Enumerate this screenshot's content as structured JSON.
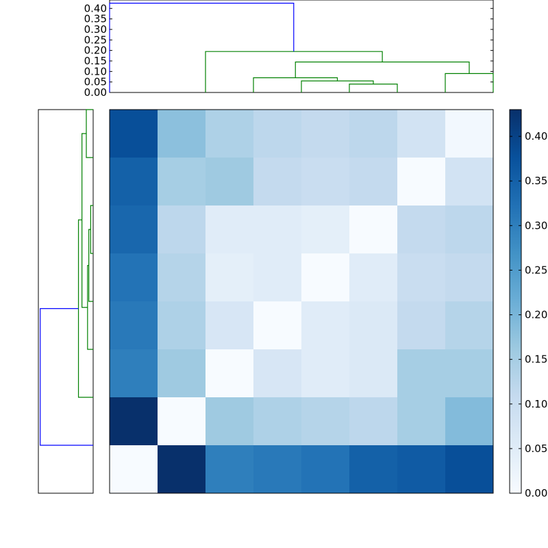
{
  "chart_data": [
    {
      "type": "heatmap",
      "title": "",
      "matrix": [
        [
          0.38,
          0.18,
          0.14,
          0.12,
          0.11,
          0.12,
          0.08,
          0.01
        ],
        [
          0.35,
          0.15,
          0.16,
          0.11,
          0.1,
          0.11,
          0.0,
          0.08
        ],
        [
          0.34,
          0.12,
          0.05,
          0.05,
          0.04,
          0.0,
          0.11,
          0.12
        ],
        [
          0.32,
          0.13,
          0.04,
          0.05,
          0.0,
          0.05,
          0.1,
          0.11
        ],
        [
          0.31,
          0.14,
          0.07,
          0.0,
          0.05,
          0.06,
          0.11,
          0.13
        ],
        [
          0.3,
          0.16,
          0.0,
          0.07,
          0.05,
          0.06,
          0.15,
          0.15
        ],
        [
          0.43,
          0.0,
          0.16,
          0.14,
          0.13,
          0.12,
          0.15,
          0.19
        ],
        [
          0.0,
          0.43,
          0.3,
          0.31,
          0.32,
          0.35,
          0.36,
          0.38
        ]
      ],
      "colorbar": {
        "range": [
          0,
          0.43
        ],
        "ticks": [
          "0.00",
          "0.05",
          "0.10",
          "0.15",
          "0.20",
          "0.25",
          "0.30",
          "0.35",
          "0.40"
        ],
        "colors": [
          "#f7fbff",
          "#deebf7",
          "#c6dbef",
          "#9ecae1",
          "#6baed6",
          "#4292c6",
          "#2171b5",
          "#08519c",
          "#08306b"
        ]
      }
    },
    {
      "type": "dendrogram",
      "orientation": "top",
      "ylim": [
        0,
        0.44
      ],
      "yticks": [
        "0.00",
        "0.05",
        "0.10",
        "0.15",
        "0.20",
        "0.25",
        "0.30",
        "0.35",
        "0.40"
      ],
      "colors": {
        "root": "#0000ff",
        "cluster": "#008000"
      },
      "links": [
        {
          "left": 5.5,
          "right": 6.5,
          "height": 0.04,
          "left_h": 0,
          "right_h": 0,
          "color": "cluster"
        },
        {
          "left": 4.5,
          "right": 6.0,
          "height": 0.055,
          "left_h": 0,
          "right_h": 0.04,
          "color": "cluster"
        },
        {
          "left": 3.5,
          "right": 5.25,
          "height": 0.07,
          "left_h": 0,
          "right_h": 0.055,
          "color": "cluster"
        },
        {
          "left": 7.5,
          "right": 8.5,
          "height": 0.09,
          "left_h": 0,
          "right_h": 0,
          "color": "cluster"
        },
        {
          "left": 4.375,
          "right": 8.0,
          "height": 0.145,
          "left_h": 0.07,
          "right_h": 0.09,
          "color": "cluster"
        },
        {
          "left": 2.5,
          "right": 6.1875,
          "height": 0.195,
          "left_h": 0,
          "right_h": 0.145,
          "color": "cluster"
        },
        {
          "left": 0.5,
          "right": 4.34,
          "height": 0.425,
          "left_h": 0,
          "right_h": 0.195,
          "color": "root"
        }
      ]
    },
    {
      "type": "dendrogram",
      "orientation": "left",
      "xlim": [
        0,
        0.44
      ],
      "colors": {
        "root": "#0000ff",
        "cluster": "#008000"
      },
      "links": [
        {
          "a": 2.5,
          "b": 3.5,
          "height": 0.02,
          "a_h": 0,
          "b_h": 0,
          "color": "cluster"
        },
        {
          "a": 3.0,
          "b": 4.5,
          "height": 0.035,
          "a_h": 0.02,
          "b_h": 0,
          "color": "cluster"
        },
        {
          "a": 3.75,
          "b": 5.5,
          "height": 0.045,
          "a_h": 0.035,
          "b_h": 0,
          "color": "cluster"
        },
        {
          "a": 0.5,
          "b": 1.5,
          "height": 0.055,
          "a_h": 0,
          "b_h": 0,
          "color": "cluster"
        },
        {
          "a": 4.625,
          "b": 1.0,
          "height": 0.09,
          "a_h": 0.045,
          "b_h": 0.055,
          "color": "cluster"
        },
        {
          "a": 6.5,
          "b": 2.8,
          "height": 0.118,
          "a_h": 0,
          "b_h": 0.09,
          "color": "cluster"
        },
        {
          "a": 4.65,
          "b": 7.5,
          "height": 0.425,
          "a_h": 0.118,
          "b_h": 0,
          "color": "root"
        }
      ]
    }
  ]
}
